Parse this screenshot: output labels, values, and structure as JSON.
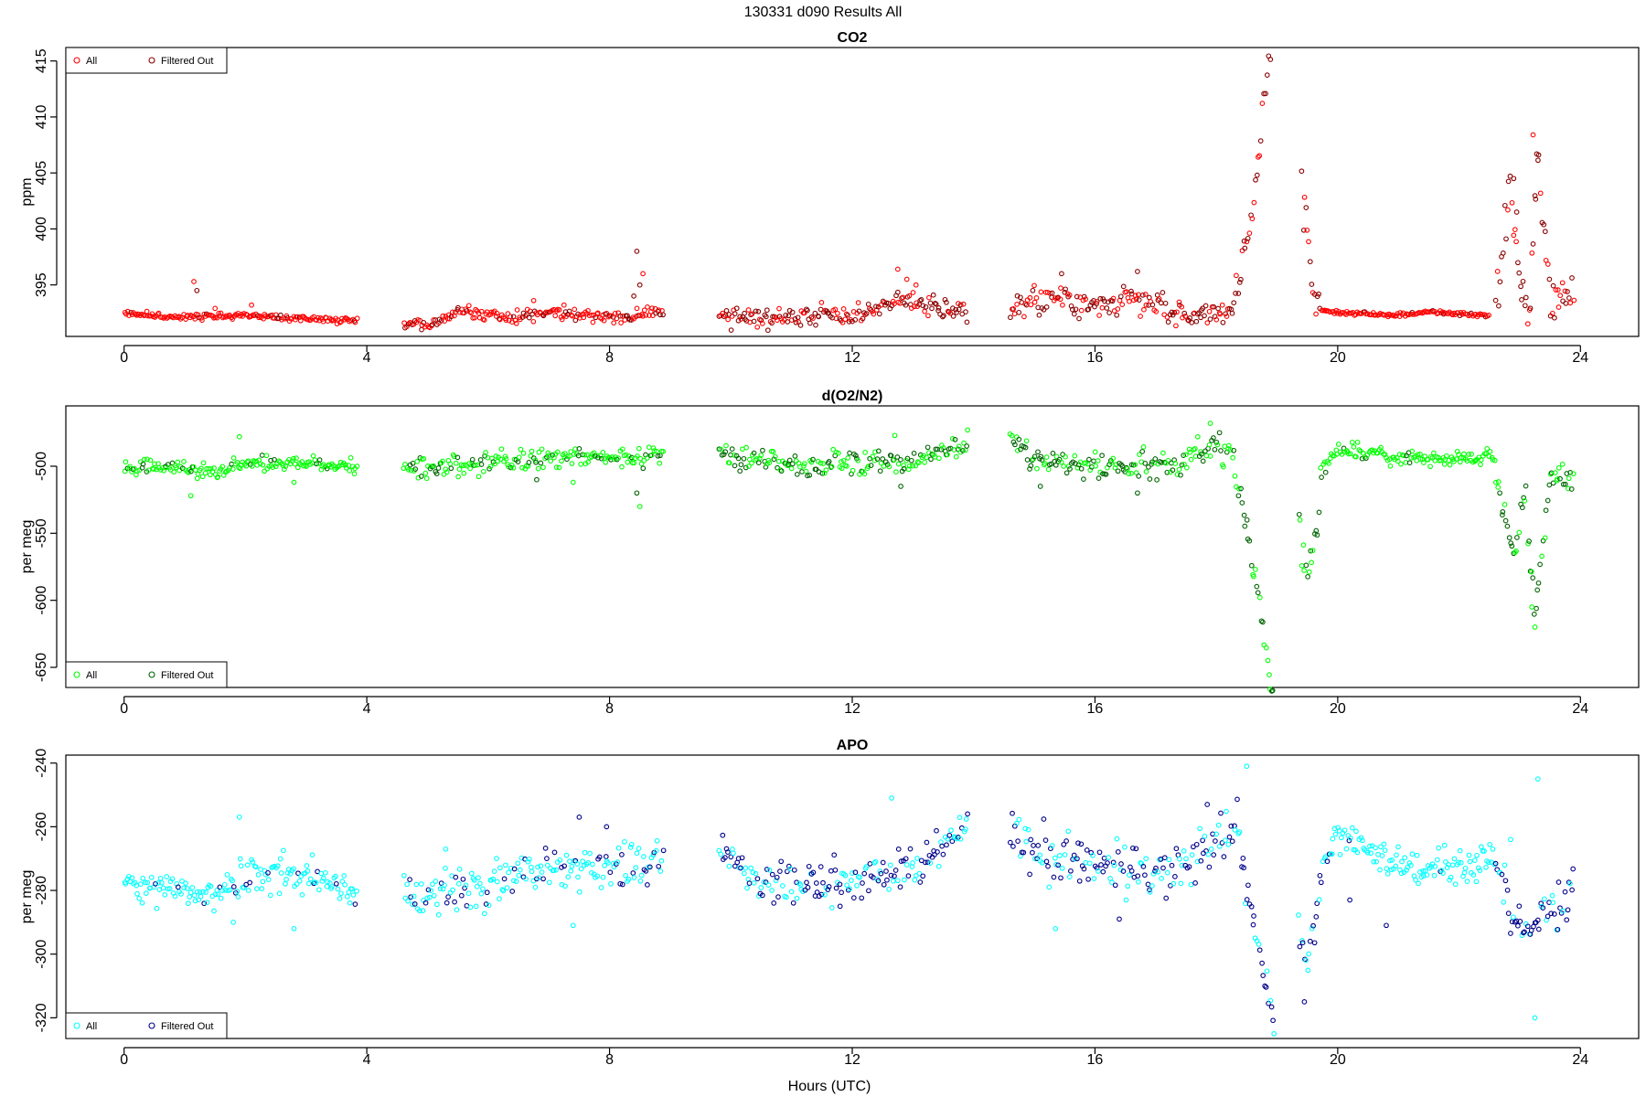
{
  "figure": {
    "title": "130331   d090   Results All",
    "xlabel": "Hours (UTC)"
  },
  "chart_data": [
    {
      "type": "scatter",
      "title": "CO2",
      "ylabel": "ppm",
      "xlim": [
        -0.96,
        24.96
      ],
      "ylim": [
        390.4,
        416.2
      ],
      "xticks": [
        0,
        4,
        8,
        12,
        16,
        20,
        24
      ],
      "yticks": [
        395,
        400,
        405,
        410,
        415
      ],
      "legend_position": "top-left",
      "legend": [
        {
          "label": "All",
          "color": "#ff0000"
        },
        {
          "label": "Filtered Out",
          "color": "#8b0000"
        }
      ],
      "segments": [
        {
          "x0": 0.0,
          "x1": 3.85,
          "base": [
            [
              0.0,
              392.5
            ],
            [
              1.0,
              392.1
            ],
            [
              2.0,
              392.3
            ],
            [
              3.0,
              392.0
            ],
            [
              3.85,
              391.8
            ]
          ],
          "noise": 0.2,
          "spikes": [
            [
              1.15,
              395.3
            ],
            [
              1.2,
              394.5
            ],
            [
              2.1,
              393.2
            ],
            [
              1.5,
              392.9
            ]
          ],
          "filtered_frac": 0.05
        },
        {
          "x0": 4.6,
          "x1": 8.9,
          "base": [
            [
              4.6,
              391.8
            ],
            [
              5.0,
              391.3
            ],
            [
              5.5,
              392.6
            ],
            [
              6.0,
              392.3
            ],
            [
              6.5,
              392.2
            ],
            [
              7.0,
              392.5
            ],
            [
              7.5,
              392.3
            ],
            [
              8.0,
              392.0
            ],
            [
              8.5,
              392.3
            ],
            [
              8.9,
              392.6
            ]
          ],
          "noise": 0.4,
          "spikes": [
            [
              8.45,
              398.0
            ],
            [
              8.5,
              395.0
            ],
            [
              8.4,
              394.0
            ],
            [
              8.55,
              396.0
            ],
            [
              6.75,
              393.6
            ],
            [
              7.25,
              393.2
            ]
          ],
          "filtered_frac": 0.25
        },
        {
          "x0": 9.8,
          "x1": 13.9,
          "base": [
            [
              9.8,
              392.5
            ],
            [
              10.0,
              392.0
            ],
            [
              11.0,
              392.0
            ],
            [
              11.5,
              392.5
            ],
            [
              12.0,
              392.2
            ],
            [
              12.5,
              393.0
            ],
            [
              12.8,
              393.8
            ],
            [
              13.2,
              393.2
            ],
            [
              13.9,
              392.4
            ]
          ],
          "noise": 0.7,
          "spikes": [
            [
              12.75,
              396.4
            ],
            [
              12.9,
              395.5
            ],
            [
              13.05,
              395.0
            ]
          ],
          "filtered_frac": 0.6
        },
        {
          "x0": 14.6,
          "x1": 18.3,
          "base": [
            [
              14.6,
              393.0
            ],
            [
              15.0,
              393.3
            ],
            [
              15.5,
              393.8
            ],
            [
              16.0,
              393.0
            ],
            [
              16.5,
              393.8
            ],
            [
              17.0,
              393.2
            ],
            [
              17.5,
              392.5
            ],
            [
              18.0,
              392.2
            ],
            [
              18.3,
              393.0
            ]
          ],
          "noise": 0.9,
          "spikes": [
            [
              16.7,
              396.2
            ],
            [
              15.45,
              396.0
            ]
          ],
          "filtered_frac": 0.6
        },
        {
          "x0": 18.3,
          "x1": 18.9,
          "base": [
            [
              18.3,
              394.5
            ],
            [
              18.5,
              398.5
            ],
            [
              18.65,
              404.0
            ],
            [
              18.75,
              410.0
            ],
            [
              18.85,
              414.5
            ],
            [
              18.9,
              415.0
            ]
          ],
          "noise": 1.2,
          "spikes": [],
          "filtered_frac": 0.6
        },
        {
          "x0": 19.4,
          "x1": 19.7,
          "base": [
            [
              19.4,
              403.5
            ],
            [
              19.5,
              399.5
            ],
            [
              19.6,
              394.5
            ],
            [
              19.7,
              392.8
            ]
          ],
          "noise": 1.5,
          "spikes": [],
          "filtered_frac": 0.6
        },
        {
          "x0": 19.7,
          "x1": 22.5,
          "base": [
            [
              19.7,
              392.8
            ],
            [
              20.0,
              392.5
            ],
            [
              21.0,
              392.3
            ],
            [
              21.5,
              392.6
            ],
            [
              22.5,
              392.2
            ]
          ],
          "noise": 0.12,
          "spikes": [],
          "filtered_frac": 0.05
        },
        {
          "x0": 22.6,
          "x1": 23.9,
          "base": [
            [
              22.6,
              392.5
            ],
            [
              22.85,
              404.0
            ],
            [
              23.0,
              395.0
            ],
            [
              23.15,
              392.3
            ],
            [
              23.3,
              407.5
            ],
            [
              23.5,
              393.5
            ],
            [
              23.9,
              394.0
            ]
          ],
          "noise": 1.5,
          "spikes": [
            [
              23.22,
              408.4
            ],
            [
              23.28,
              406.7
            ],
            [
              22.9,
              404.5
            ],
            [
              22.95,
              401.5
            ]
          ],
          "filtered_frac": 0.6
        }
      ]
    },
    {
      "type": "scatter",
      "title": "d(O2/N2)",
      "ylabel": "per meg",
      "xlim": [
        -0.96,
        24.96
      ],
      "ylim": [
        -665,
        -455
      ],
      "xticks": [
        0,
        4,
        8,
        12,
        16,
        20,
        24
      ],
      "yticks": [
        -650,
        -600,
        -550,
        -500
      ],
      "legend_position": "bottom-left",
      "legend": [
        {
          "label": "All",
          "color": "#00ff00"
        },
        {
          "label": "Filtered Out",
          "color": "#006400"
        }
      ],
      "segments": [
        {
          "x0": 0.0,
          "x1": 3.85,
          "base": [
            [
              0.0,
              -500
            ],
            [
              1.0,
              -502
            ],
            [
              1.5,
              -505
            ],
            [
              2.0,
              -497
            ],
            [
              3.0,
              -497
            ],
            [
              3.85,
              -502
            ]
          ],
          "noise": 4,
          "spikes": [
            [
              1.1,
              -522
            ],
            [
              1.9,
              -478
            ],
            [
              2.8,
              -512
            ]
          ],
          "filtered_frac": 0.1
        },
        {
          "x0": 4.6,
          "x1": 8.9,
          "base": [
            [
              4.6,
              -500
            ],
            [
              5.5,
              -500
            ],
            [
              6.5,
              -496
            ],
            [
              7.0,
              -493
            ],
            [
              8.0,
              -494
            ],
            [
              8.9,
              -492
            ]
          ],
          "noise": 6,
          "spikes": [
            [
              8.5,
              -530
            ],
            [
              8.45,
              -520
            ],
            [
              7.4,
              -512
            ],
            [
              6.8,
              -510
            ]
          ],
          "filtered_frac": 0.25
        },
        {
          "x0": 9.8,
          "x1": 13.9,
          "base": [
            [
              9.8,
              -492
            ],
            [
              10.5,
              -497
            ],
            [
              11.5,
              -500
            ],
            [
              12.5,
              -496
            ],
            [
              13.0,
              -498
            ],
            [
              13.9,
              -480
            ]
          ],
          "noise": 6,
          "spikes": [
            [
              13.9,
              -473
            ],
            [
              12.7,
              -477
            ],
            [
              12.8,
              -515
            ]
          ],
          "filtered_frac": 0.45
        },
        {
          "x0": 14.6,
          "x1": 18.3,
          "base": [
            [
              14.6,
              -480
            ],
            [
              15.0,
              -495
            ],
            [
              16.0,
              -500
            ],
            [
              17.0,
              -500
            ],
            [
              17.8,
              -490
            ],
            [
              18.3,
              -488
            ]
          ],
          "noise": 7,
          "spikes": [
            [
              17.9,
              -468
            ],
            [
              16.7,
              -520
            ],
            [
              15.1,
              -515
            ]
          ],
          "filtered_frac": 0.55
        },
        {
          "x0": 18.3,
          "x1": 18.95,
          "base": [
            [
              18.3,
              -510
            ],
            [
              18.5,
              -540
            ],
            [
              18.7,
              -600
            ],
            [
              18.8,
              -635
            ],
            [
              18.9,
              -662
            ]
          ],
          "noise": 9,
          "spikes": [],
          "filtered_frac": 0.6
        },
        {
          "x0": 19.35,
          "x1": 19.75,
          "base": [
            [
              19.35,
              -535
            ],
            [
              19.5,
              -590
            ],
            [
              19.6,
              -560
            ],
            [
              19.75,
              -505
            ]
          ],
          "noise": 10,
          "spikes": [],
          "filtered_frac": 0.5
        },
        {
          "x0": 19.75,
          "x1": 22.6,
          "base": [
            [
              19.75,
              -500
            ],
            [
              20.0,
              -488
            ],
            [
              21.0,
              -493
            ],
            [
              22.0,
              -495
            ],
            [
              22.6,
              -493
            ]
          ],
          "noise": 4,
          "spikes": [],
          "filtered_frac": 0.05
        },
        {
          "x0": 22.6,
          "x1": 23.9,
          "base": [
            [
              22.6,
              -505
            ],
            [
              22.9,
              -570
            ],
            [
              23.1,
              -520
            ],
            [
              23.25,
              -610
            ],
            [
              23.5,
              -505
            ],
            [
              23.9,
              -512
            ]
          ],
          "noise": 8,
          "spikes": [
            [
              23.25,
              -620
            ],
            [
              23.2,
              -605
            ]
          ],
          "filtered_frac": 0.6
        }
      ]
    },
    {
      "type": "scatter",
      "title": "APO",
      "ylabel": "per meg",
      "xlim": [
        -0.96,
        24.96
      ],
      "ylim": [
        -326.5,
        -237.5
      ],
      "xticks": [
        0,
        4,
        8,
        12,
        16,
        20,
        24
      ],
      "yticks": [
        -320,
        -300,
        -280,
        -260,
        -240
      ],
      "legend_position": "bottom-left",
      "legend": [
        {
          "label": "All",
          "color": "#00ffff"
        },
        {
          "label": "Filtered Out",
          "color": "#00008b"
        }
      ],
      "segments": [
        {
          "x0": 0.0,
          "x1": 3.85,
          "base": [
            [
              0.0,
              -278
            ],
            [
              1.0,
              -280
            ],
            [
              1.5,
              -282
            ],
            [
              2.0,
              -276
            ],
            [
              3.0,
              -274
            ],
            [
              3.85,
              -281
            ]
          ],
          "noise": 4,
          "spikes": [
            [
              1.9,
              -257
            ],
            [
              2.8,
              -292
            ],
            [
              1.8,
              -290
            ]
          ],
          "filtered_frac": 0.08
        },
        {
          "x0": 4.6,
          "x1": 8.9,
          "base": [
            [
              4.6,
              -282
            ],
            [
              5.5,
              -280
            ],
            [
              6.5,
              -276
            ],
            [
              7.0,
              -272
            ],
            [
              8.0,
              -273
            ],
            [
              8.9,
              -270
            ]
          ],
          "noise": 5,
          "spikes": [
            [
              7.5,
              -257
            ],
            [
              7.4,
              -291
            ],
            [
              5.3,
              -267
            ],
            [
              7.95,
              -260
            ]
          ],
          "filtered_frac": 0.25
        },
        {
          "x0": 9.8,
          "x1": 13.9,
          "base": [
            [
              9.8,
              -268
            ],
            [
              10.5,
              -276
            ],
            [
              11.5,
              -279
            ],
            [
              12.0,
              -276
            ],
            [
              13.0,
              -273
            ],
            [
              13.9,
              -260
            ]
          ],
          "noise": 5,
          "spikes": [
            [
              12.65,
              -251
            ],
            [
              13.9,
              -256
            ],
            [
              11.8,
              -285
            ]
          ],
          "filtered_frac": 0.5
        },
        {
          "x0": 14.6,
          "x1": 18.4,
          "base": [
            [
              14.6,
              -258
            ],
            [
              15.0,
              -268
            ],
            [
              16.0,
              -272
            ],
            [
              17.0,
              -274
            ],
            [
              17.8,
              -268
            ],
            [
              18.4,
              -258
            ]
          ],
          "noise": 6,
          "spikes": [
            [
              18.5,
              -241
            ],
            [
              17.85,
              -253
            ],
            [
              16.4,
              -289
            ],
            [
              15.35,
              -292
            ]
          ],
          "filtered_frac": 0.6
        },
        {
          "x0": 18.4,
          "x1": 18.95,
          "base": [
            [
              18.4,
              -270
            ],
            [
              18.6,
              -288
            ],
            [
              18.75,
              -302
            ],
            [
              18.85,
              -313
            ],
            [
              18.95,
              -322
            ]
          ],
          "noise": 4,
          "spikes": [
            [
              18.95,
              -325
            ]
          ],
          "filtered_frac": 0.8
        },
        {
          "x0": 19.35,
          "x1": 19.75,
          "base": [
            [
              19.35,
              -290
            ],
            [
              19.5,
              -305
            ],
            [
              19.6,
              -292
            ],
            [
              19.75,
              -272
            ]
          ],
          "noise": 5,
          "spikes": [
            [
              19.45,
              -315
            ]
          ],
          "filtered_frac": 0.7
        },
        {
          "x0": 19.75,
          "x1": 22.6,
          "base": [
            [
              19.75,
              -270
            ],
            [
              20.0,
              -263
            ],
            [
              21.0,
              -272
            ],
            [
              22.0,
              -273
            ],
            [
              22.6,
              -270
            ]
          ],
          "noise": 4,
          "spikes": [
            [
              20.8,
              -291
            ],
            [
              20.2,
              -283
            ]
          ],
          "filtered_frac": 0.06
        },
        {
          "x0": 22.6,
          "x1": 23.9,
          "base": [
            [
              22.6,
              -272
            ],
            [
              22.9,
              -288
            ],
            [
              23.15,
              -295
            ],
            [
              23.35,
              -285
            ],
            [
              23.6,
              -285
            ],
            [
              23.9,
              -280
            ]
          ],
          "noise": 5,
          "spikes": [
            [
              23.3,
              -245
            ],
            [
              23.25,
              -320
            ],
            [
              22.85,
              -264
            ]
          ],
          "filtered_frac": 0.55
        }
      ]
    }
  ]
}
